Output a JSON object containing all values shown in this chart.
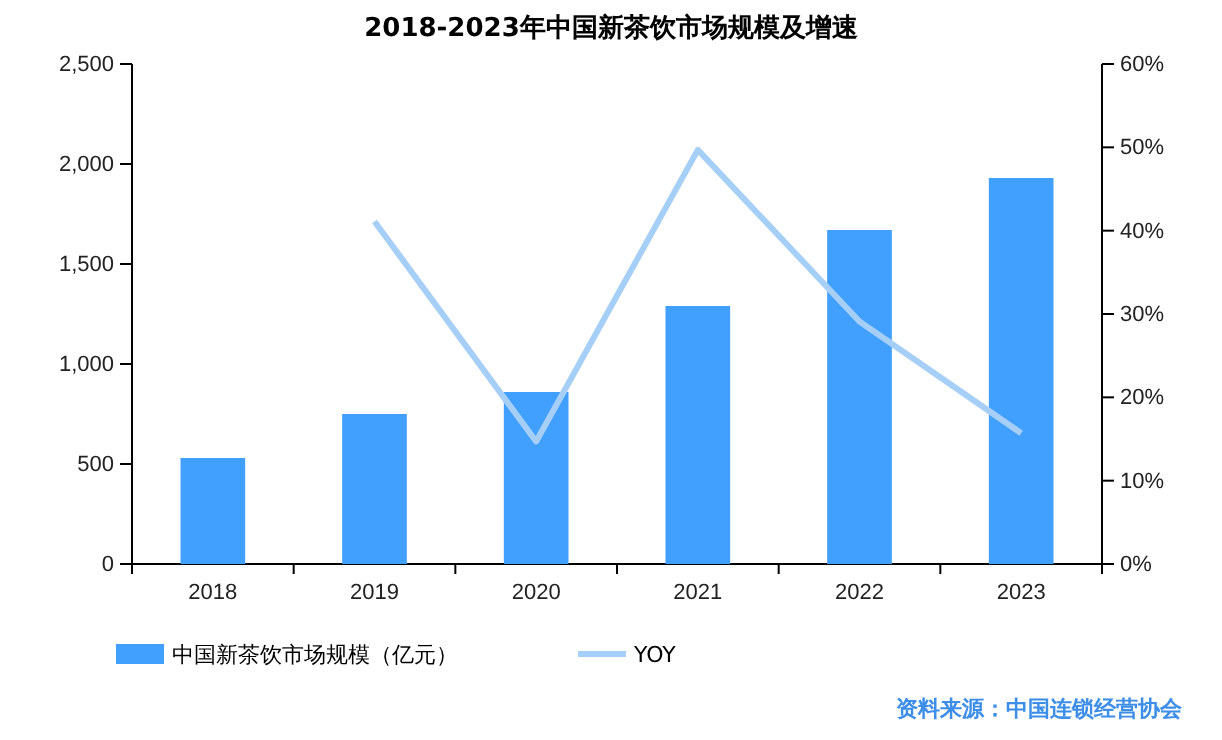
{
  "chart_data": {
    "type": "bar",
    "title": "2018-2023年中国新茶饮市场规模及增速",
    "categories": [
      "2018",
      "2019",
      "2020",
      "2021",
      "2022",
      "2023"
    ],
    "series": [
      {
        "name": "中国新茶饮市场规模（亿元）",
        "color": "#419ffe",
        "values": [
          530,
          750,
          860,
          1290,
          1670,
          1930
        ]
      },
      {
        "name": "YOY",
        "type": "line",
        "axis": "y2",
        "color": "#a6cff8",
        "values": [
          null,
          41.1,
          14.7,
          49.7,
          29.1,
          15.7
        ]
      }
    ],
    "ylim": [
      0,
      2500
    ],
    "yticks": [
      {
        "value": 0,
        "label": "0"
      },
      {
        "value": 500,
        "label": "500"
      },
      {
        "value": 1000,
        "label": "1,000"
      },
      {
        "value": 1500,
        "label": "1,500"
      },
      {
        "value": 2000,
        "label": "2,000"
      },
      {
        "value": 2500,
        "label": "2,500"
      }
    ],
    "y2lim": [
      0,
      60
    ],
    "y2ticks": [
      {
        "value": 0,
        "label": "0%"
      },
      {
        "value": 10,
        "label": "10%"
      },
      {
        "value": 20,
        "label": "20%"
      },
      {
        "value": 30,
        "label": "30%"
      },
      {
        "value": 40,
        "label": "40%"
      },
      {
        "value": 50,
        "label": "50%"
      },
      {
        "value": 60,
        "label": "60%"
      }
    ],
    "legend": "bottom left",
    "grid": false,
    "marker": "none",
    "annotations": [
      "资料来源：中国连锁经营协会"
    ]
  }
}
